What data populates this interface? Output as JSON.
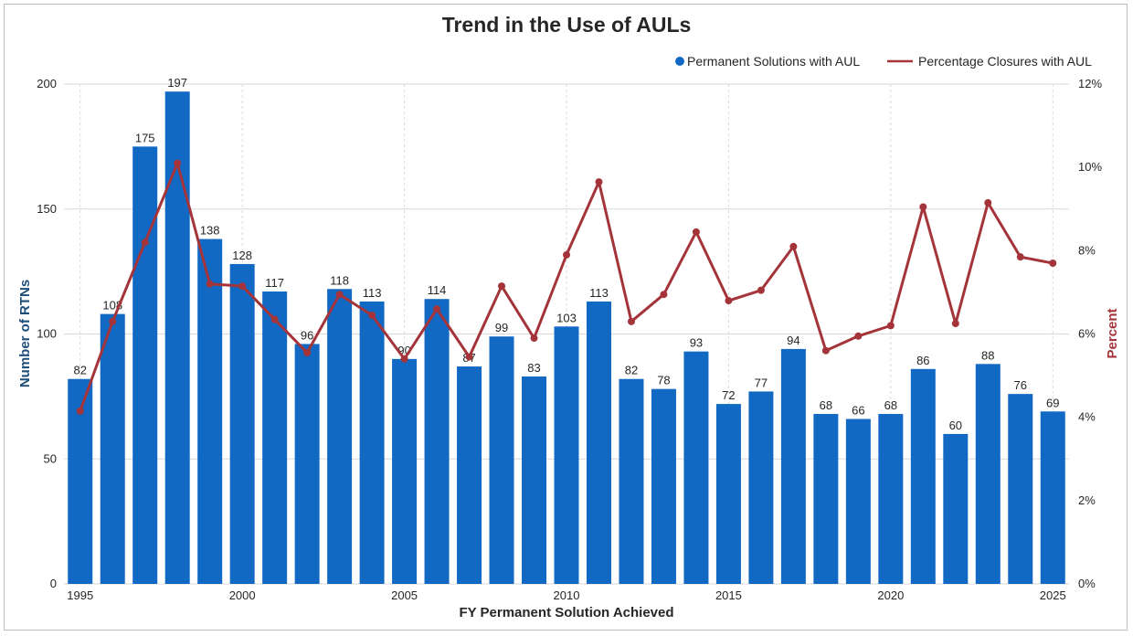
{
  "chart_data": {
    "type": "bar",
    "title": "Trend in the Use of AULs",
    "xlabel": "FY Permanent Solution Achieved",
    "ylabel": "Number of RTNs",
    "y2label": "Percent",
    "ylim": [
      0,
      200
    ],
    "y2lim": [
      0,
      12
    ],
    "yticks": [
      "0",
      "50",
      "100",
      "150",
      "200"
    ],
    "y2ticks": [
      "0%",
      "2%",
      "4%",
      "6%",
      "8%",
      "10%",
      "12%"
    ],
    "xticks": [
      "1995",
      "2000",
      "2005",
      "2010",
      "2015",
      "2020",
      "2025"
    ],
    "legend_position": "top-right",
    "grid": true,
    "x": [
      1995,
      1996,
      1997,
      1998,
      1999,
      2000,
      2001,
      2002,
      2003,
      2004,
      2005,
      2006,
      2007,
      2008,
      2009,
      2010,
      2011,
      2012,
      2013,
      2014,
      2015,
      2016,
      2017,
      2018,
      2019,
      2020,
      2021,
      2022,
      2023,
      2024,
      2025
    ],
    "series": [
      {
        "name": "Permanent Solutions with AUL",
        "type": "bar",
        "axis": "left",
        "color": "#1269c4",
        "values": [
          82,
          108,
          175,
          197,
          138,
          128,
          117,
          96,
          118,
          113,
          90,
          114,
          87,
          99,
          83,
          103,
          113,
          82,
          78,
          93,
          72,
          77,
          94,
          68,
          66,
          68,
          86,
          60,
          88,
          76,
          69
        ]
      },
      {
        "name": "Percentage Closures with AUL",
        "type": "line",
        "axis": "right",
        "color": "#a4343a",
        "values": [
          4.15,
          6.3,
          8.2,
          10.1,
          7.2,
          7.15,
          6.35,
          5.55,
          6.95,
          6.45,
          5.4,
          6.6,
          5.45,
          7.15,
          5.9,
          7.9,
          9.65,
          6.3,
          6.95,
          8.45,
          6.8,
          7.05,
          8.1,
          5.6,
          5.95,
          6.2,
          9.05,
          6.25,
          9.15,
          7.85,
          7.7
        ]
      }
    ]
  }
}
